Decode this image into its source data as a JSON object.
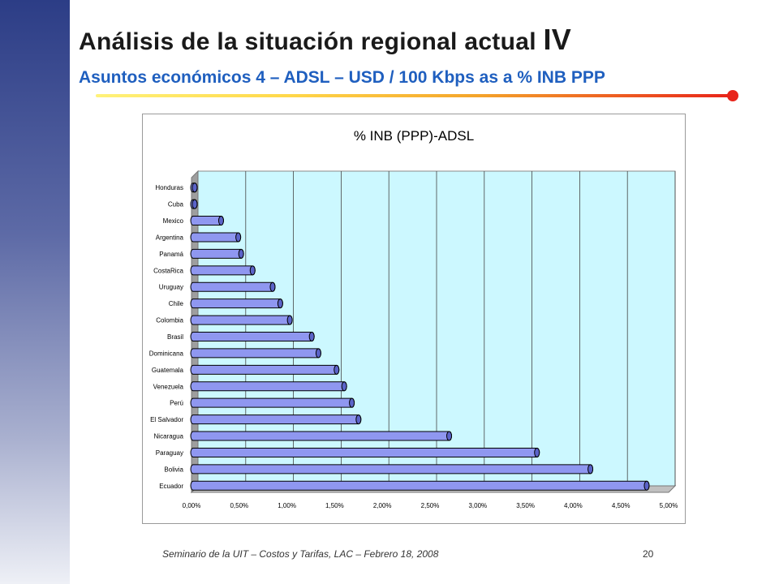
{
  "slide": {
    "title_main": "Análisis de la situación regional actual ",
    "title_roman": "IV",
    "subtitle": "Asuntos económicos 4 – ADSL – USD / 100 Kbps as a % INB PPP",
    "footer": "Seminario de la UIT – Costos y Tarifas, LAC – Febrero 18, 2008",
    "page_number": "20"
  },
  "colors": {
    "sidebar_top": "#2c3d86",
    "bar_fill": "#8f97f0",
    "plot_bg": "#ccf8ff",
    "subtitle": "#1f5fbf"
  },
  "chart_data": {
    "type": "bar",
    "orientation": "horizontal",
    "style": "3d-cylinder",
    "title": "% INB (PPP)-ADSL",
    "categories": [
      "Honduras",
      "Cuba",
      "Mexico",
      "Argentina",
      "Panamá",
      "CostaRica",
      "Uruguay",
      "Chile",
      "Colombia",
      "Brasil",
      "Dominicana",
      "Guatemala",
      "Venezuela",
      "Perú",
      "El Salvador",
      "Nicaragua",
      "Paraguay",
      "Bolivia",
      "Ecuador"
    ],
    "values": [
      0.0,
      0.0,
      0.31,
      0.49,
      0.52,
      0.64,
      0.85,
      0.93,
      1.03,
      1.26,
      1.33,
      1.52,
      1.6,
      1.68,
      1.75,
      2.7,
      3.62,
      4.18,
      4.77
    ],
    "xlim": [
      0,
      5
    ],
    "x_ticks": [
      "0,00%",
      "0,50%",
      "1,00%",
      "1,50%",
      "2,00%",
      "2,50%",
      "3,00%",
      "3,50%",
      "4,00%",
      "4,50%",
      "5,00%"
    ],
    "grid": true,
    "legend": "none"
  }
}
